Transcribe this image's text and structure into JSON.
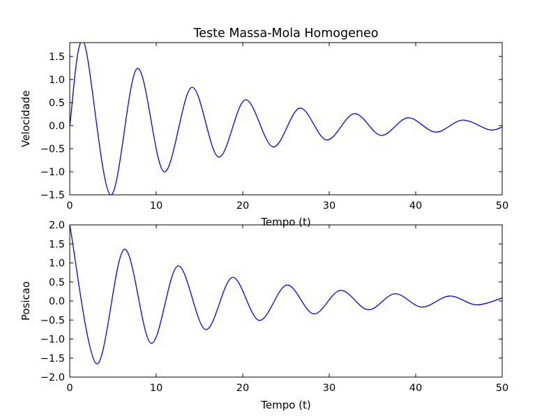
{
  "colors": {
    "line": "#0000ff",
    "axes": "#000000",
    "background": "#ffffff"
  },
  "chart_data": [
    {
      "type": "line",
      "title": "Teste Massa-Mola Homogeneo",
      "xlabel": "Tempo (t)",
      "ylabel": "Velocidade",
      "xlim": [
        0,
        50
      ],
      "ylim": [
        -1.5,
        1.8
      ],
      "xticks": [
        0,
        10,
        20,
        30,
        40,
        50
      ],
      "yticks": [
        -1.5,
        -1.0,
        -0.5,
        0.0,
        0.5,
        1.0,
        1.5
      ],
      "xtick_labels": [
        "0",
        "10",
        "20",
        "30",
        "40",
        "50"
      ],
      "ytick_labels": [
        "−1.5",
        "−1.0",
        "−0.5",
        "0.0",
        "0.5",
        "1.0",
        "1.5"
      ],
      "grid": false,
      "series": [
        {
          "x": [
            0,
            1.6,
            4.7,
            7.8,
            10.9,
            14.1,
            17.2,
            20.3,
            23.5,
            26.6,
            29.7,
            32.9,
            36.0,
            39.1,
            42.3,
            45.4,
            48.5,
            50
          ],
          "y": [
            0.0,
            1.82,
            -1.5,
            1.24,
            -1.0,
            0.83,
            -0.68,
            0.56,
            -0.46,
            0.38,
            -0.31,
            0.26,
            -0.21,
            0.17,
            -0.14,
            0.12,
            -0.09,
            -0.03
          ]
        }
      ]
    },
    {
      "type": "line",
      "title": "",
      "xlabel": "Tempo (t)",
      "ylabel": "Posicao",
      "xlim": [
        0,
        50
      ],
      "ylim": [
        -2.0,
        2.0
      ],
      "xticks": [
        0,
        10,
        20,
        30,
        40,
        50
      ],
      "yticks": [
        -2.0,
        -1.5,
        -1.0,
        -0.5,
        0.0,
        0.5,
        1.0,
        1.5,
        2.0
      ],
      "xtick_labels": [
        "0",
        "10",
        "20",
        "30",
        "40",
        "50"
      ],
      "ytick_labels": [
        "−2.0",
        "−1.5",
        "−1.0",
        "−0.5",
        "0.0",
        "0.5",
        "1.0",
        "1.5",
        "2.0"
      ],
      "grid": false,
      "series": [
        {
          "x": [
            0,
            3.1,
            6.3,
            9.4,
            12.5,
            15.7,
            18.8,
            21.9,
            25.1,
            28.2,
            31.3,
            34.5,
            37.6,
            40.7,
            43.9,
            47.0,
            50
          ],
          "y": [
            2.0,
            -1.65,
            1.36,
            -1.11,
            0.92,
            -0.75,
            0.62,
            -0.51,
            0.42,
            -0.34,
            0.28,
            -0.23,
            0.19,
            -0.16,
            0.13,
            -0.1,
            0.08
          ]
        }
      ]
    }
  ]
}
